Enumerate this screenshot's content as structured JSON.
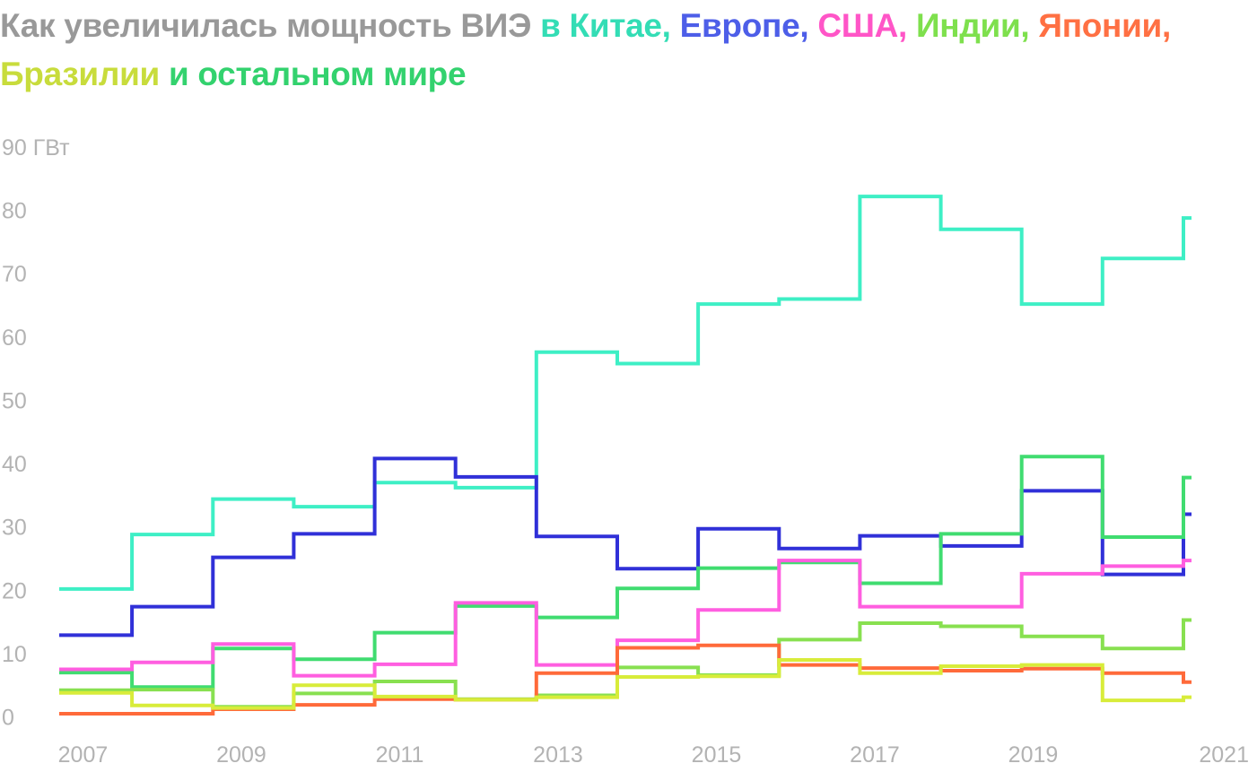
{
  "title": {
    "prefix": "Как увеличилась мощность ВИЭ",
    "parts": [
      {
        "text": " в Китае,",
        "color": "#33ddb5"
      },
      {
        "text": " Европе,",
        "color": "#4d5ee8"
      },
      {
        "text": " США,",
        "color": "#ff55c7"
      },
      {
        "text": " Индии,",
        "color": "#7ee04d"
      },
      {
        "text": " Японии,",
        "color": "#ff7043"
      },
      {
        "text": " Бразилии",
        "color": "#c8dc3c"
      },
      {
        "text": " и остальном мире",
        "color": "#33d26e"
      }
    ]
  },
  "chart_data": {
    "type": "line",
    "step": true,
    "x": [
      2007,
      2008,
      2009,
      2010,
      2011,
      2012,
      2013,
      2014,
      2015,
      2016,
      2017,
      2018,
      2019,
      2020,
      2021
    ],
    "ylim": [
      0,
      90
    ],
    "xlim": [
      2006.7,
      2021
    ],
    "yticks": [
      0,
      10,
      20,
      30,
      40,
      50,
      60,
      70,
      80,
      90
    ],
    "ytick_labels": [
      "0",
      "10",
      "20",
      "30",
      "40",
      "50",
      "60",
      "70",
      "80",
      "90 ГВт"
    ],
    "xticks": [
      2007,
      2009,
      2011,
      2013,
      2015,
      2017,
      2019,
      2021
    ],
    "xtick_labels": [
      "2007",
      "2009",
      "2011",
      "2013",
      "2015",
      "2017",
      "2019",
      "2021"
    ],
    "series": [
      {
        "name": "Китай",
        "color": "#3eefc5",
        "values": [
          20.2,
          28.8,
          34.4,
          33.2,
          37.0,
          36.2,
          57.6,
          55.8,
          65.2,
          66.0,
          82.2,
          77.0,
          65.2,
          72.4,
          78.8
        ]
      },
      {
        "name": "Европа",
        "color": "#3030d8",
        "values": [
          12.9,
          17.4,
          25.2,
          28.9,
          40.8,
          37.9,
          28.5,
          23.4,
          29.7,
          26.6,
          28.6,
          27.0,
          35.7,
          22.5,
          32.0
        ]
      },
      {
        "name": "остальной мир",
        "color": "#40dc70",
        "values": [
          7.0,
          4.7,
          10.8,
          9.1,
          13.3,
          17.5,
          15.7,
          20.3,
          23.5,
          24.4,
          21.1,
          28.9,
          41.1,
          28.4,
          37.8
        ]
      },
      {
        "name": "США",
        "color": "#ff5ee0",
        "values": [
          7.5,
          8.6,
          11.5,
          6.5,
          8.3,
          18.0,
          8.2,
          12.1,
          16.9,
          24.7,
          17.4,
          17.4,
          22.6,
          23.8,
          24.7
        ]
      },
      {
        "name": "Индия",
        "color": "#88e050",
        "values": [
          4.2,
          4.3,
          1.6,
          3.7,
          5.6,
          2.8,
          3.4,
          7.8,
          6.6,
          12.2,
          14.8,
          14.3,
          12.7,
          10.8,
          15.3
        ]
      },
      {
        "name": "Япония",
        "color": "#ff6a3a",
        "values": [
          0.5,
          0.5,
          1.2,
          1.9,
          2.8,
          2.7,
          6.9,
          10.9,
          11.3,
          8.2,
          7.7,
          7.3,
          7.6,
          6.9,
          5.5
        ]
      },
      {
        "name": "Бразилия",
        "color": "#d8ec3a",
        "values": [
          3.8,
          1.8,
          1.4,
          5.0,
          3.2,
          2.7,
          3.1,
          6.3,
          6.4,
          9.0,
          6.9,
          8.0,
          8.2,
          2.6,
          3.1
        ]
      }
    ]
  }
}
